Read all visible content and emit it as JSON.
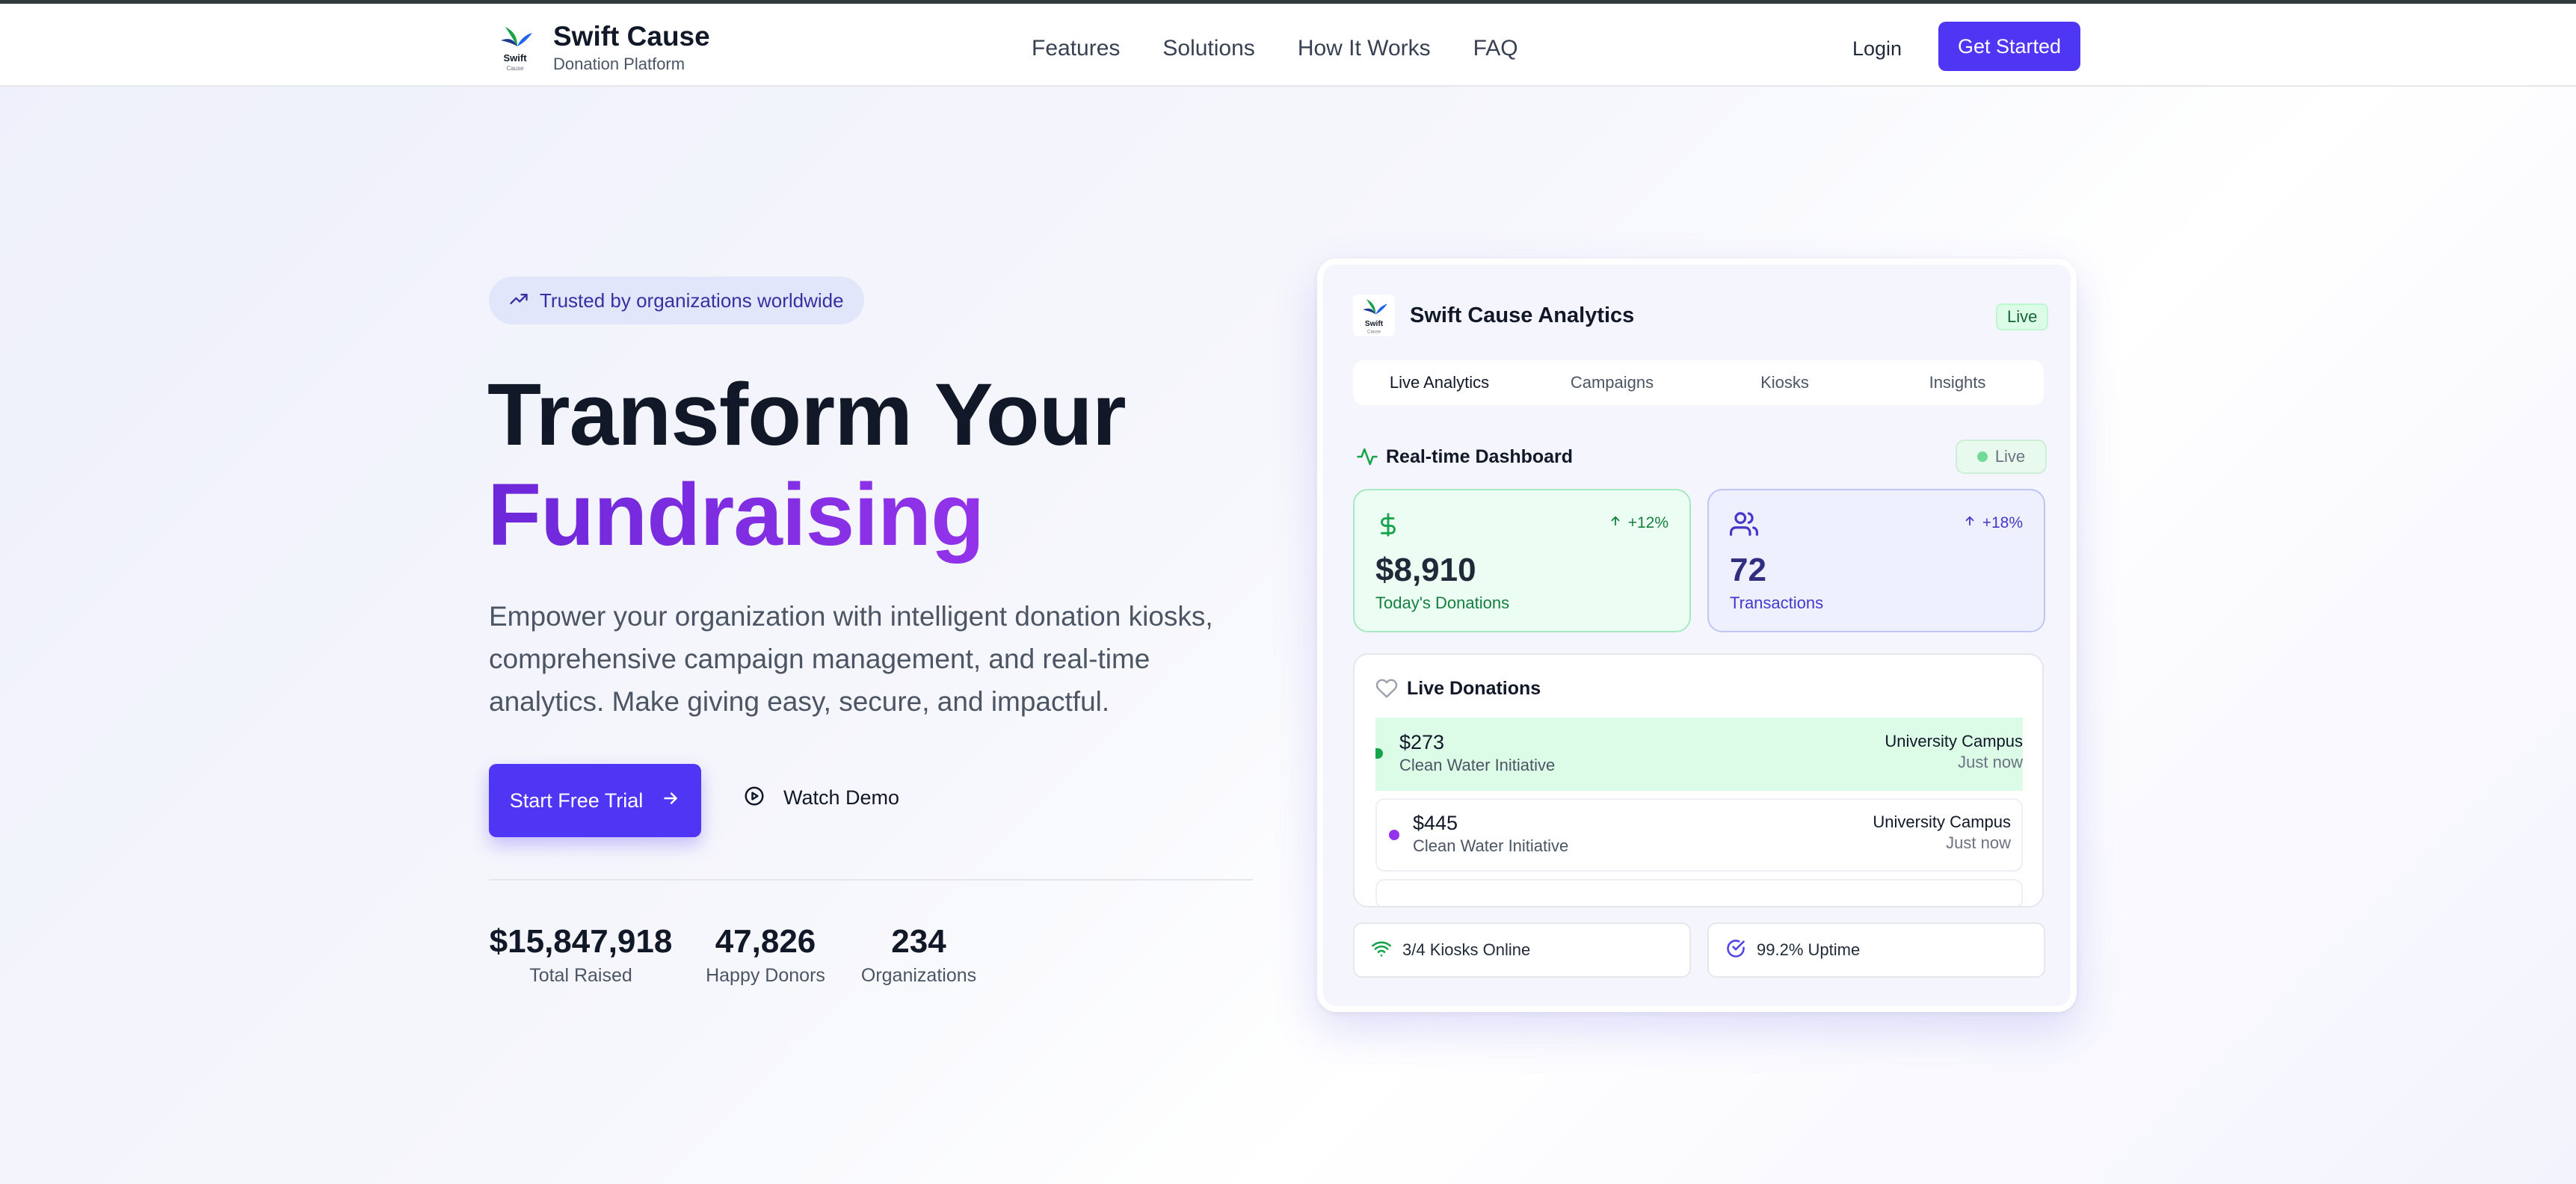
{
  "nav": {
    "brand_title": "Swift Cause",
    "brand_subtitle": "Donation Platform",
    "logo_text": "Swift",
    "logo_subtext": "Cause",
    "links": [
      "Features",
      "Solutions",
      "How It Works",
      "FAQ"
    ],
    "login": "Login",
    "cta": "Get Started"
  },
  "hero": {
    "badge": "Trusted by organizations worldwide",
    "headline_line1": "Transform Your",
    "headline_line2": "Fundraising",
    "description": "Empower your organization with intelligent donation kiosks, comprehensive campaign management, and real-time analytics. Make giving easy, secure, and impactful.",
    "primary_button": "Start Free Trial",
    "secondary_button": "Watch Demo",
    "stats": [
      {
        "value": "$15,847,918",
        "label": "Total Raised"
      },
      {
        "value": "47,826",
        "label": "Happy Donors"
      },
      {
        "value": "234",
        "label": "Organizations"
      }
    ]
  },
  "dashboard": {
    "title": "Swift Cause Analytics",
    "live_tag": "Live",
    "tabs": [
      "Live Analytics",
      "Campaigns",
      "Kiosks",
      "Insights"
    ],
    "section_title": "Real-time Dashboard",
    "live_pill": "Live",
    "metrics": [
      {
        "icon": "dollar-icon",
        "change": "+12%",
        "value": "$8,910",
        "label": "Today's Donations",
        "color": "#15803d"
      },
      {
        "icon": "users-icon",
        "change": "+18%",
        "value": "72",
        "label": "Transactions",
        "color": "#4338ca"
      }
    ],
    "live_donations_title": "Live Donations",
    "donations": [
      {
        "amount": "$273",
        "cause": "Clean Water Initiative",
        "location": "University Campus",
        "time": "Just now"
      },
      {
        "amount": "$445",
        "cause": "Clean Water Initiative",
        "location": "University Campus",
        "time": "Just now"
      }
    ],
    "kiosks_status": "3/4 Kiosks Online",
    "uptime_status": "99.2% Uptime"
  },
  "colors": {
    "primary": "#4f36f5",
    "accent_purple": "#7c3aed",
    "green": "#16a34a"
  }
}
